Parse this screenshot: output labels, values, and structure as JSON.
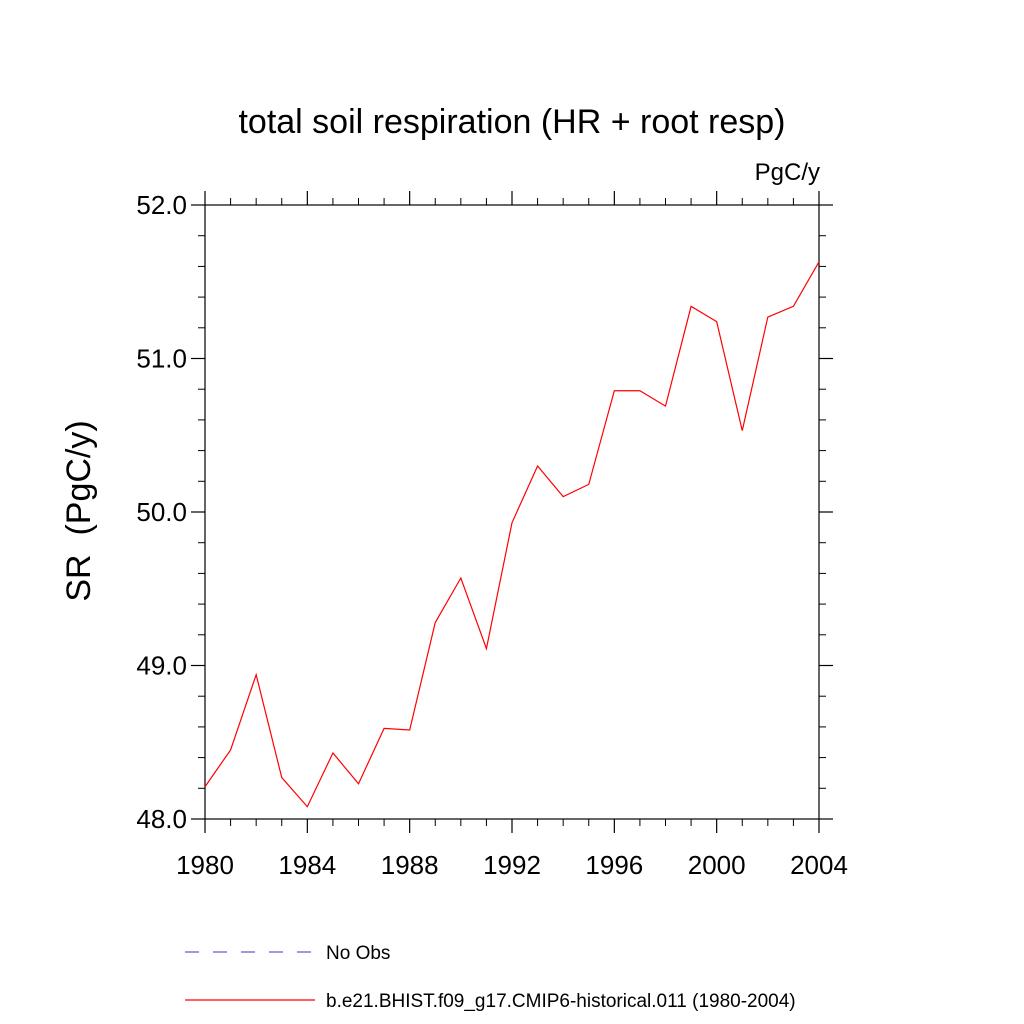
{
  "chart_data": {
    "type": "line",
    "title": "total soil respiration (HR + root resp)",
    "units_label": "PgC/y",
    "ylabel": "SR  (PgC/y)",
    "xlabel": "",
    "xlim": [
      1980,
      2004
    ],
    "ylim": [
      48.0,
      52.0
    ],
    "x_ticks": [
      1980,
      1984,
      1988,
      1992,
      1996,
      2000,
      2004
    ],
    "x_tick_labels": [
      "1980",
      "1984",
      "1988",
      "1992",
      "1996",
      "2000",
      "2004"
    ],
    "y_ticks": [
      48.0,
      49.0,
      50.0,
      51.0,
      52.0
    ],
    "y_tick_labels": [
      "48.0",
      "49.0",
      "50.0",
      "51.0",
      "52.0"
    ],
    "x_minor_step": 1,
    "y_minor_step": 0.2,
    "grid": false,
    "legend_position": "bottom",
    "series": [
      {
        "name": "b.e21.BHIST.f09_g17.CMIP6-historical.011 (1980-2004)",
        "color": "#ff0000",
        "style": "solid",
        "x": [
          1980,
          1981,
          1982,
          1983,
          1984,
          1985,
          1986,
          1987,
          1988,
          1989,
          1990,
          1991,
          1992,
          1993,
          1994,
          1995,
          1996,
          1997,
          1998,
          1999,
          2000,
          2001,
          2002,
          2003,
          2004
        ],
        "y": [
          48.21,
          48.45,
          48.94,
          48.27,
          48.08,
          48.43,
          48.23,
          48.59,
          48.58,
          49.28,
          49.57,
          49.11,
          49.93,
          50.3,
          50.1,
          50.18,
          50.79,
          50.79,
          50.69,
          51.34,
          51.24,
          50.53,
          51.27,
          51.34,
          51.63
        ]
      },
      {
        "name": "No Obs",
        "color": "#6a5acd",
        "style": "dashed",
        "x": [],
        "y": []
      }
    ]
  }
}
